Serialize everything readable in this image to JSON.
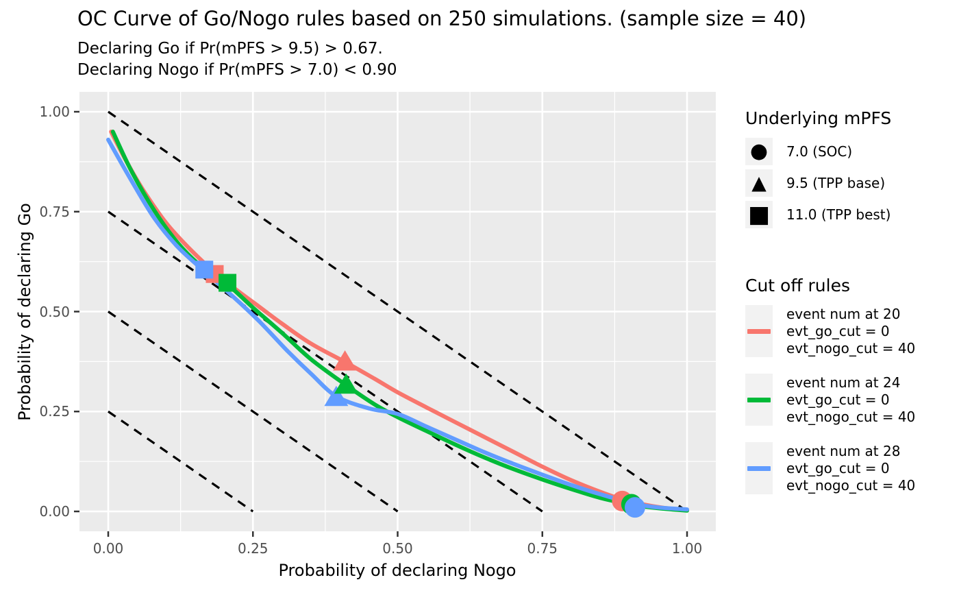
{
  "title": "OC Curve of Go/Nogo rules based on 250 simulations. (sample size = 40)",
  "subtitle_line1": "Declaring Go if Pr(mPFS > 9.5) > 0.67.",
  "subtitle_line2": "Declaring Nogo if Pr(mPFS > 7.0) < 0.90",
  "axes": {
    "x_title": "Probability of declaring Nogo",
    "y_title": "Probability of declaring Go"
  },
  "colors": {
    "accent_red": "#F8766D",
    "accent_green": "#00BA38",
    "accent_blue": "#619CFF",
    "panel_bg": "#EBEBEB",
    "grid": "#FFFFFF",
    "tick_text": "#4D4D4D",
    "tick_mark": "#333333",
    "legend_key_bg": "#F2F2F2",
    "dashed_line": "#000000"
  },
  "chart_data": {
    "type": "line",
    "title": "OC Curve of Go/Nogo rules based on 250 simulations. (sample size = 40)",
    "xlabel": "Probability of declaring Nogo",
    "ylabel": "Probability of declaring Go",
    "xlim": [
      0,
      1
    ],
    "ylim": [
      0,
      1
    ],
    "grid": "major+minor",
    "legend_position": "right",
    "tick_values": [
      0,
      0.25,
      0.5,
      0.75,
      1.0
    ],
    "tick_labels": [
      "0.00",
      "0.25",
      "0.50",
      "0.75",
      "1.00"
    ],
    "minor_tick_values": [
      0.125,
      0.375,
      0.625,
      0.875
    ],
    "reference_lines": [
      {
        "x1": 0,
        "y1": 1.0,
        "x2": 1.0,
        "y2": 0,
        "style": "dashed"
      },
      {
        "x1": 0,
        "y1": 0.75,
        "x2": 0.75,
        "y2": 0,
        "style": "dashed"
      },
      {
        "x1": 0,
        "y1": 0.5,
        "x2": 0.5,
        "y2": 0,
        "style": "dashed"
      },
      {
        "x1": 0,
        "y1": 0.25,
        "x2": 0.25,
        "y2": 0,
        "style": "dashed"
      }
    ],
    "series": [
      {
        "id": "evt20",
        "name": "event num at 20, evt_go_cut = 0, evt_nogo_cut = 40",
        "color": "#F8766D",
        "points": [
          [
            0.005,
            0.95
          ],
          [
            0.03,
            0.88
          ],
          [
            0.06,
            0.805
          ],
          [
            0.1,
            0.722
          ],
          [
            0.14,
            0.658
          ],
          [
            0.184,
            0.598
          ],
          [
            0.22,
            0.556
          ],
          [
            0.26,
            0.513
          ],
          [
            0.3,
            0.47
          ],
          [
            0.35,
            0.42
          ],
          [
            0.409,
            0.374
          ],
          [
            0.46,
            0.332
          ],
          [
            0.5,
            0.298
          ],
          [
            0.55,
            0.26
          ],
          [
            0.6,
            0.223
          ],
          [
            0.65,
            0.186
          ],
          [
            0.7,
            0.149
          ],
          [
            0.75,
            0.112
          ],
          [
            0.8,
            0.078
          ],
          [
            0.85,
            0.049
          ],
          [
            0.888,
            0.03
          ],
          [
            0.93,
            0.016
          ],
          [
            0.96,
            0.009
          ],
          [
            1.0,
            0.003
          ]
        ]
      },
      {
        "id": "evt24",
        "name": "event num at 24, evt_go_cut = 0, evt_nogo_cut = 40",
        "color": "#00BA38",
        "points": [
          [
            0.008,
            0.95
          ],
          [
            0.04,
            0.852
          ],
          [
            0.08,
            0.752
          ],
          [
            0.12,
            0.672
          ],
          [
            0.16,
            0.614
          ],
          [
            0.206,
            0.568
          ],
          [
            0.25,
            0.51
          ],
          [
            0.3,
            0.447
          ],
          [
            0.35,
            0.381
          ],
          [
            0.411,
            0.316
          ],
          [
            0.46,
            0.268
          ],
          [
            0.5,
            0.236
          ],
          [
            0.55,
            0.201
          ],
          [
            0.6,
            0.167
          ],
          [
            0.65,
            0.135
          ],
          [
            0.7,
            0.106
          ],
          [
            0.75,
            0.08
          ],
          [
            0.8,
            0.056
          ],
          [
            0.85,
            0.034
          ],
          [
            0.904,
            0.017
          ],
          [
            0.95,
            0.008
          ],
          [
            1.0,
            0.002
          ]
        ]
      },
      {
        "id": "evt28",
        "name": "event num at 28, evt_go_cut = 0, evt_nogo_cut = 40",
        "color": "#619CFF",
        "points": [
          [
            0.0,
            0.93
          ],
          [
            0.04,
            0.828
          ],
          [
            0.08,
            0.733
          ],
          [
            0.12,
            0.662
          ],
          [
            0.166,
            0.601
          ],
          [
            0.21,
            0.545
          ],
          [
            0.26,
            0.477
          ],
          [
            0.31,
            0.401
          ],
          [
            0.35,
            0.345
          ],
          [
            0.394,
            0.288
          ],
          [
            0.45,
            0.258
          ],
          [
            0.5,
            0.244
          ],
          [
            0.55,
            0.212
          ],
          [
            0.6,
            0.18
          ],
          [
            0.65,
            0.148
          ],
          [
            0.7,
            0.119
          ],
          [
            0.75,
            0.092
          ],
          [
            0.8,
            0.066
          ],
          [
            0.85,
            0.043
          ],
          [
            0.91,
            0.019
          ],
          [
            0.95,
            0.01
          ],
          [
            1.0,
            0.005
          ]
        ]
      }
    ],
    "markers": [
      {
        "series": "evt20",
        "shape": "circle",
        "mpfs": "7.0",
        "x": 0.888,
        "y": 0.026
      },
      {
        "series": "evt24",
        "shape": "circle",
        "mpfs": "7.0",
        "x": 0.904,
        "y": 0.018
      },
      {
        "series": "evt28",
        "shape": "circle",
        "mpfs": "7.0",
        "x": 0.91,
        "y": 0.01
      },
      {
        "series": "evt20",
        "shape": "triangle",
        "mpfs": "9.5",
        "x": 0.409,
        "y": 0.374
      },
      {
        "series": "evt28",
        "shape": "triangle",
        "mpfs": "9.5",
        "x": 0.394,
        "y": 0.285
      },
      {
        "series": "evt24",
        "shape": "triangle",
        "mpfs": "9.5",
        "x": 0.411,
        "y": 0.316
      },
      {
        "series": "evt20",
        "shape": "square",
        "mpfs": "11.0",
        "x": 0.184,
        "y": 0.594
      },
      {
        "series": "evt24",
        "shape": "square",
        "mpfs": "11.0",
        "x": 0.206,
        "y": 0.572
      },
      {
        "series": "evt28",
        "shape": "square",
        "mpfs": "11.0",
        "x": 0.166,
        "y": 0.605
      }
    ]
  },
  "legends": {
    "shape": {
      "title": "Underlying mPFS",
      "items": [
        {
          "shape": "circle",
          "glyph": "●",
          "label": "7.0 (SOC)"
        },
        {
          "shape": "triangle",
          "glyph": "▲",
          "label": "9.5 (TPP base)"
        },
        {
          "shape": "square",
          "glyph": "■",
          "label": "11.0 (TPP best)"
        }
      ]
    },
    "color": {
      "title": "Cut off rules",
      "items": [
        {
          "series": "evt20",
          "color": "#F8766D",
          "label_lines": [
            "event num at 20",
            "evt_go_cut = 0",
            "evt_nogo_cut = 40"
          ]
        },
        {
          "series": "evt24",
          "color": "#00BA38",
          "label_lines": [
            "event num at 24",
            "evt_go_cut = 0",
            "evt_nogo_cut = 40"
          ]
        },
        {
          "series": "evt28",
          "color": "#619CFF",
          "label_lines": [
            "event num at 28",
            "evt_go_cut = 0",
            "evt_nogo_cut = 40"
          ]
        }
      ]
    }
  }
}
